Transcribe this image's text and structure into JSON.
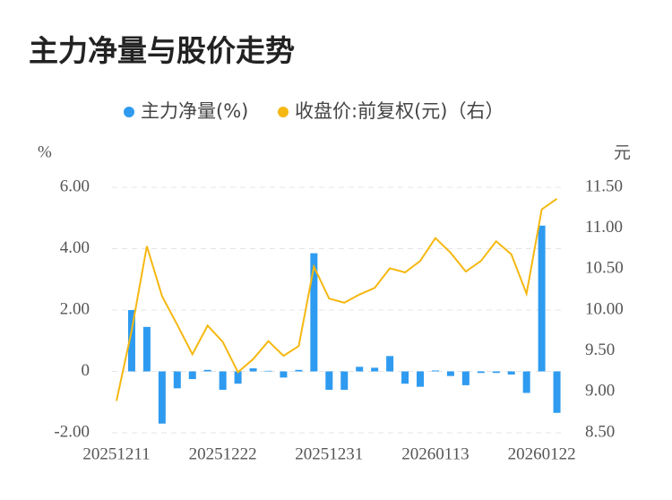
{
  "chart_data": {
    "type": "bar-line",
    "title": "主力净量与股价走势",
    "y_label": "%",
    "y2_label": "元",
    "categories": [
      "20251211",
      null,
      null,
      null,
      null,
      null,
      null,
      "20251222",
      null,
      null,
      null,
      null,
      null,
      null,
      "20251231",
      null,
      null,
      null,
      null,
      null,
      null,
      "20260113",
      null,
      null,
      null,
      null,
      null,
      null,
      "20260122",
      null
    ],
    "series": [
      {
        "name": "主力净量(%)",
        "type": "bar",
        "color": "#2e9bf0",
        "values": [
          0,
          2.0,
          1.45,
          -1.7,
          -0.55,
          -0.25,
          0.05,
          -0.6,
          -0.4,
          0.1,
          0.02,
          -0.2,
          0.05,
          3.85,
          -0.6,
          -0.6,
          0.15,
          0.12,
          0.5,
          -0.4,
          -0.5,
          0.03,
          -0.15,
          -0.45,
          -0.05,
          -0.05,
          -0.1,
          -0.7,
          4.75,
          -1.35
        ]
      },
      {
        "name": "收盘价:前复权(元)（右）",
        "type": "line",
        "axis": "y2",
        "color": "#f5b811",
        "values": [
          8.89,
          9.75,
          10.78,
          10.17,
          9.82,
          9.46,
          9.81,
          9.61,
          9.24,
          9.4,
          9.62,
          9.44,
          9.56,
          10.53,
          10.14,
          10.09,
          10.19,
          10.27,
          10.51,
          10.46,
          10.6,
          10.88,
          10.7,
          10.47,
          10.6,
          10.84,
          10.68,
          10.2,
          11.23,
          11.36
        ]
      }
    ],
    "ylim": [
      -2,
      6
    ],
    "yticks": [
      {
        "value": -2,
        "label": "-2.00"
      },
      0,
      {
        "value": 2,
        "label": "2.00"
      },
      {
        "value": 4,
        "label": "4.00"
      },
      {
        "value": 6,
        "label": "6.00"
      }
    ],
    "y2lim": [
      8.5,
      11.5
    ],
    "y2ticks": [
      {
        "value": 8.5,
        "label": "8.50"
      },
      {
        "value": 9,
        "label": "9.00"
      },
      {
        "value": 9.5,
        "label": "9.50"
      },
      {
        "value": 10,
        "label": "10.00"
      },
      {
        "value": 10.5,
        "label": "10.50"
      },
      {
        "value": 11,
        "label": "11.00"
      },
      {
        "value": 11.5,
        "label": "11.50"
      }
    ],
    "grid": true
  }
}
